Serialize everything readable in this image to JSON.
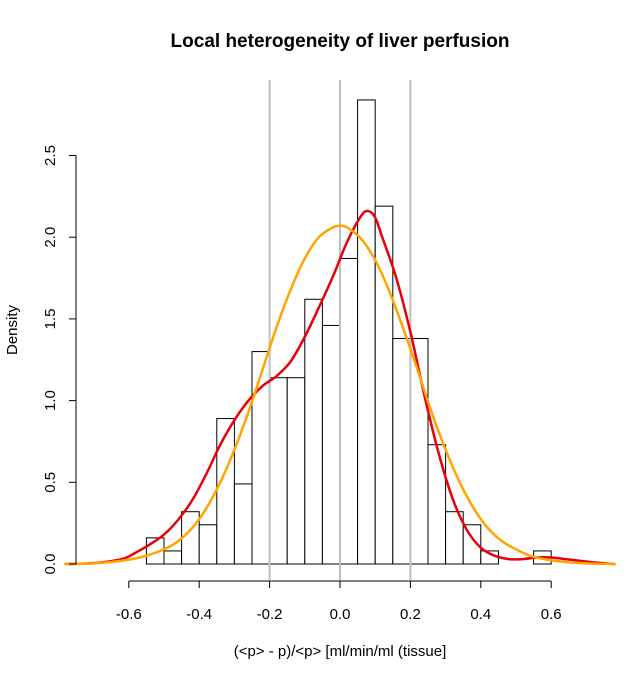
{
  "chart_data": {
    "type": "bar",
    "title": "Local heterogeneity of liver perfusion",
    "xlabel": "(<p> - p)/<p> [ml/min/ml (tissue]",
    "ylabel": "Density",
    "xlim": [
      -0.75,
      0.75
    ],
    "ylim": [
      0,
      2.85
    ],
    "x_ticks": [
      -0.6,
      -0.4,
      -0.2,
      0.0,
      0.2,
      0.4,
      0.6
    ],
    "x_tick_labels": [
      "-0.6",
      "-0.4",
      "-0.2",
      "0.0",
      "0.2",
      "0.4",
      "0.6"
    ],
    "y_ticks": [
      0.0,
      0.5,
      1.0,
      1.5,
      2.0,
      2.5
    ],
    "y_tick_labels": [
      "0.0",
      "0.5",
      "1.0",
      "1.5",
      "2.0",
      "2.5"
    ],
    "grid": false,
    "histogram": {
      "bin_edges": [
        -0.55,
        -0.5,
        -0.45,
        -0.4,
        -0.35,
        -0.3,
        -0.25,
        -0.2,
        -0.15,
        -0.1,
        -0.05,
        0.0,
        0.05,
        0.1,
        0.15,
        0.2,
        0.25,
        0.3,
        0.35,
        0.4,
        0.45,
        0.5,
        0.55,
        0.6
      ],
      "density": [
        0.16,
        0.08,
        0.32,
        0.24,
        0.89,
        0.49,
        1.3,
        1.14,
        1.14,
        1.62,
        1.46,
        1.87,
        2.84,
        2.19,
        1.38,
        1.38,
        0.73,
        0.32,
        0.24,
        0.08,
        0.0,
        0.0,
        0.08
      ],
      "fill": "#ffffff",
      "stroke": "#000000"
    },
    "reference_lines": [
      {
        "x": -0.2,
        "color": "#bebebe"
      },
      {
        "x": 0.0,
        "color": "#bebebe"
      },
      {
        "x": 0.2,
        "color": "#bebebe"
      }
    ],
    "series": [
      {
        "type": "line",
        "color": "#e8000b",
        "x": [
          -0.78,
          -0.7,
          -0.62,
          -0.58,
          -0.54,
          -0.5,
          -0.46,
          -0.42,
          -0.38,
          -0.34,
          -0.3,
          -0.26,
          -0.22,
          -0.18,
          -0.14,
          -0.1,
          -0.06,
          -0.02,
          0.02,
          0.06,
          0.08,
          0.1,
          0.12,
          0.16,
          0.2,
          0.24,
          0.28,
          0.32,
          0.36,
          0.4,
          0.44,
          0.48,
          0.52,
          0.56,
          0.6,
          0.64,
          0.68,
          0.72,
          0.78
        ],
        "values": [
          0.0,
          0.005,
          0.03,
          0.07,
          0.12,
          0.18,
          0.27,
          0.39,
          0.55,
          0.73,
          0.88,
          1.0,
          1.09,
          1.15,
          1.24,
          1.39,
          1.57,
          1.76,
          1.97,
          2.13,
          2.16,
          2.12,
          2.0,
          1.75,
          1.42,
          1.03,
          0.68,
          0.4,
          0.21,
          0.1,
          0.05,
          0.03,
          0.03,
          0.04,
          0.04,
          0.03,
          0.02,
          0.01,
          0.0
        ]
      },
      {
        "type": "line",
        "color": "#ffa500",
        "x": [
          -0.78,
          -0.7,
          -0.62,
          -0.56,
          -0.5,
          -0.46,
          -0.42,
          -0.38,
          -0.34,
          -0.3,
          -0.26,
          -0.22,
          -0.18,
          -0.14,
          -0.1,
          -0.06,
          -0.02,
          0.0,
          0.02,
          0.06,
          0.1,
          0.14,
          0.18,
          0.22,
          0.26,
          0.3,
          0.34,
          0.38,
          0.42,
          0.46,
          0.5,
          0.54,
          0.58,
          0.64,
          0.7,
          0.78
        ],
        "values": [
          0.0,
          0.004,
          0.02,
          0.045,
          0.09,
          0.14,
          0.22,
          0.34,
          0.5,
          0.7,
          0.93,
          1.19,
          1.45,
          1.68,
          1.87,
          2.0,
          2.06,
          2.07,
          2.06,
          1.99,
          1.86,
          1.67,
          1.44,
          1.19,
          0.93,
          0.7,
          0.5,
          0.34,
          0.22,
          0.14,
          0.09,
          0.05,
          0.03,
          0.012,
          0.004,
          0.0
        ]
      }
    ]
  }
}
